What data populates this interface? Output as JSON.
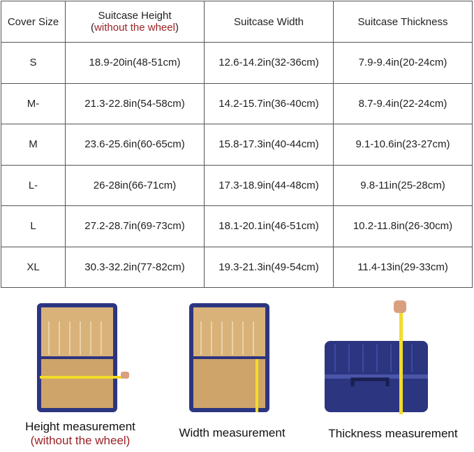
{
  "table": {
    "headers": [
      "Cover Size",
      "Suitcase Height",
      "Suitcase Width",
      "Suitcase Thickness"
    ],
    "height_note_open": "(",
    "height_note": "without the wheel",
    "height_note_close": ")",
    "rows": [
      [
        "S",
        "18.9-20in(48-51cm)",
        "12.6-14.2in(32-36cm)",
        "7.9-9.4in(20-24cm)"
      ],
      [
        "M-",
        "21.3-22.8in(54-58cm)",
        "14.2-15.7in(36-40cm)",
        "8.7-9.4in(22-24cm)"
      ],
      [
        "M",
        "23.6-25.6in(60-65cm)",
        "15.8-17.3in(40-44cm)",
        "9.1-10.6in(23-27cm)"
      ],
      [
        "L-",
        "26-28in(66-71cm)",
        "17.3-18.9in(44-48cm)",
        "9.8-11in(25-28cm)"
      ],
      [
        "L",
        "27.2-28.7in(69-73cm)",
        "18.1-20.1in(46-51cm)",
        "10.2-11.8in(26-30cm)"
      ],
      [
        "XL",
        "30.3-32.2in(77-82cm)",
        "19.3-21.3in(49-54cm)",
        "11.4-13in(29-33cm)"
      ]
    ]
  },
  "captions": {
    "height": "Height measurement",
    "height_note": "(without the wheel)",
    "width": "Width measurement",
    "thickness": "Thickness measurement"
  },
  "colors": {
    "accent_red": "#9b2226",
    "suitcase_blue": "#2c3580",
    "lining": "#d9b27a",
    "tape": "#f2dc2a"
  }
}
